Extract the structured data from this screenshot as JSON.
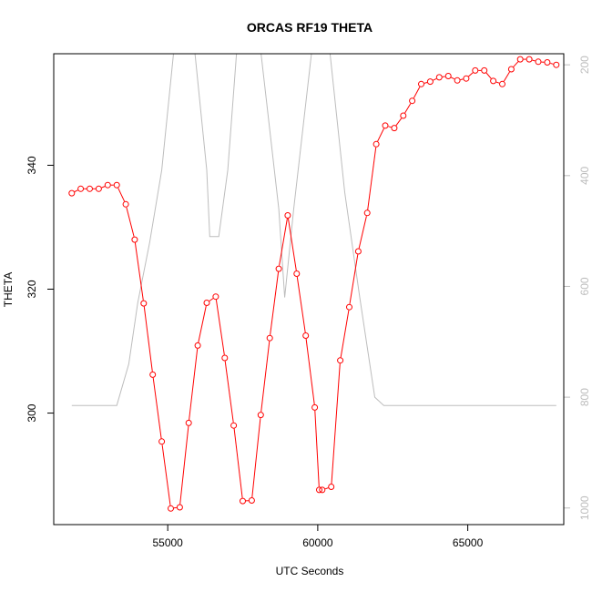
{
  "chart_data": {
    "type": "line",
    "title": "ORCAS RF19 THETA",
    "xlabel": "UTC Seconds",
    "ylabel": "THETA",
    "xlim": [
      51200,
      68200
    ],
    "ylim": [
      282,
      358
    ],
    "x_ticks": [
      55000,
      60000,
      65000
    ],
    "y_ticks": [
      300,
      320,
      340
    ],
    "y2lim": [
      1030,
      180
    ],
    "y2_ticks": [
      200,
      400,
      600,
      800,
      1000
    ],
    "grid": false,
    "legend": "none",
    "colors": {
      "primary": "#ff0000",
      "secondary": "#bdbdbd",
      "frame": "#000000"
    },
    "series": [
      {
        "axis": "left",
        "style": "line+open-circle",
        "x": [
          51800,
          52100,
          52400,
          52700,
          53000,
          53300,
          53600,
          53900,
          54200,
          54500,
          54800,
          55100,
          55400,
          55700,
          56000,
          56300,
          56600,
          56900,
          57200,
          57500,
          57800,
          58100,
          58400,
          58700,
          59000,
          59300,
          59600,
          59900,
          60050,
          60150,
          60450,
          60750,
          61050,
          61350,
          61650,
          61950,
          62250,
          62550,
          62850,
          63150,
          63450,
          63750,
          64050,
          64350,
          64650,
          64950,
          65250,
          65550,
          65850,
          66150,
          66450,
          66750,
          67050,
          67350,
          67650,
          67950
        ],
        "y": [
          335.5,
          336.2,
          336.2,
          336.2,
          336.8,
          336.8,
          333.7,
          328.0,
          317.7,
          306.2,
          295.4,
          284.6,
          284.8,
          298.4,
          310.9,
          317.8,
          318.8,
          308.9,
          298.0,
          285.8,
          285.9,
          299.7,
          312.1,
          323.3,
          331.9,
          322.5,
          312.5,
          300.9,
          287.6,
          287.6,
          288.1,
          308.5,
          317.1,
          326.1,
          332.3,
          343.4,
          346.4,
          346.0,
          348.0,
          350.4,
          353.1,
          353.5,
          354.2,
          354.4,
          353.7,
          354.0,
          355.3,
          355.3,
          353.6,
          353.1,
          355.5,
          357.1,
          357.1,
          356.7,
          356.6,
          356.2
        ]
      },
      {
        "axis": "right",
        "style": "line",
        "x": [
          51800,
          53300,
          53700,
          54000,
          54400,
          54800,
          55200,
          55900,
          56300,
          56400,
          56700,
          57000,
          57300,
          58100,
          58700,
          58900,
          59200,
          59800,
          60400,
          60900,
          61400,
          61900,
          62200,
          63000,
          64000,
          65000,
          66000,
          67000,
          67950
        ],
        "y": [
          815,
          815,
          740,
          630,
          520,
          390,
          175,
          175,
          390,
          510,
          510,
          390,
          175,
          175,
          460,
          620,
          460,
          175,
          175,
          430,
          620,
          800,
          815,
          815,
          815,
          815,
          815,
          815,
          815
        ]
      }
    ]
  }
}
